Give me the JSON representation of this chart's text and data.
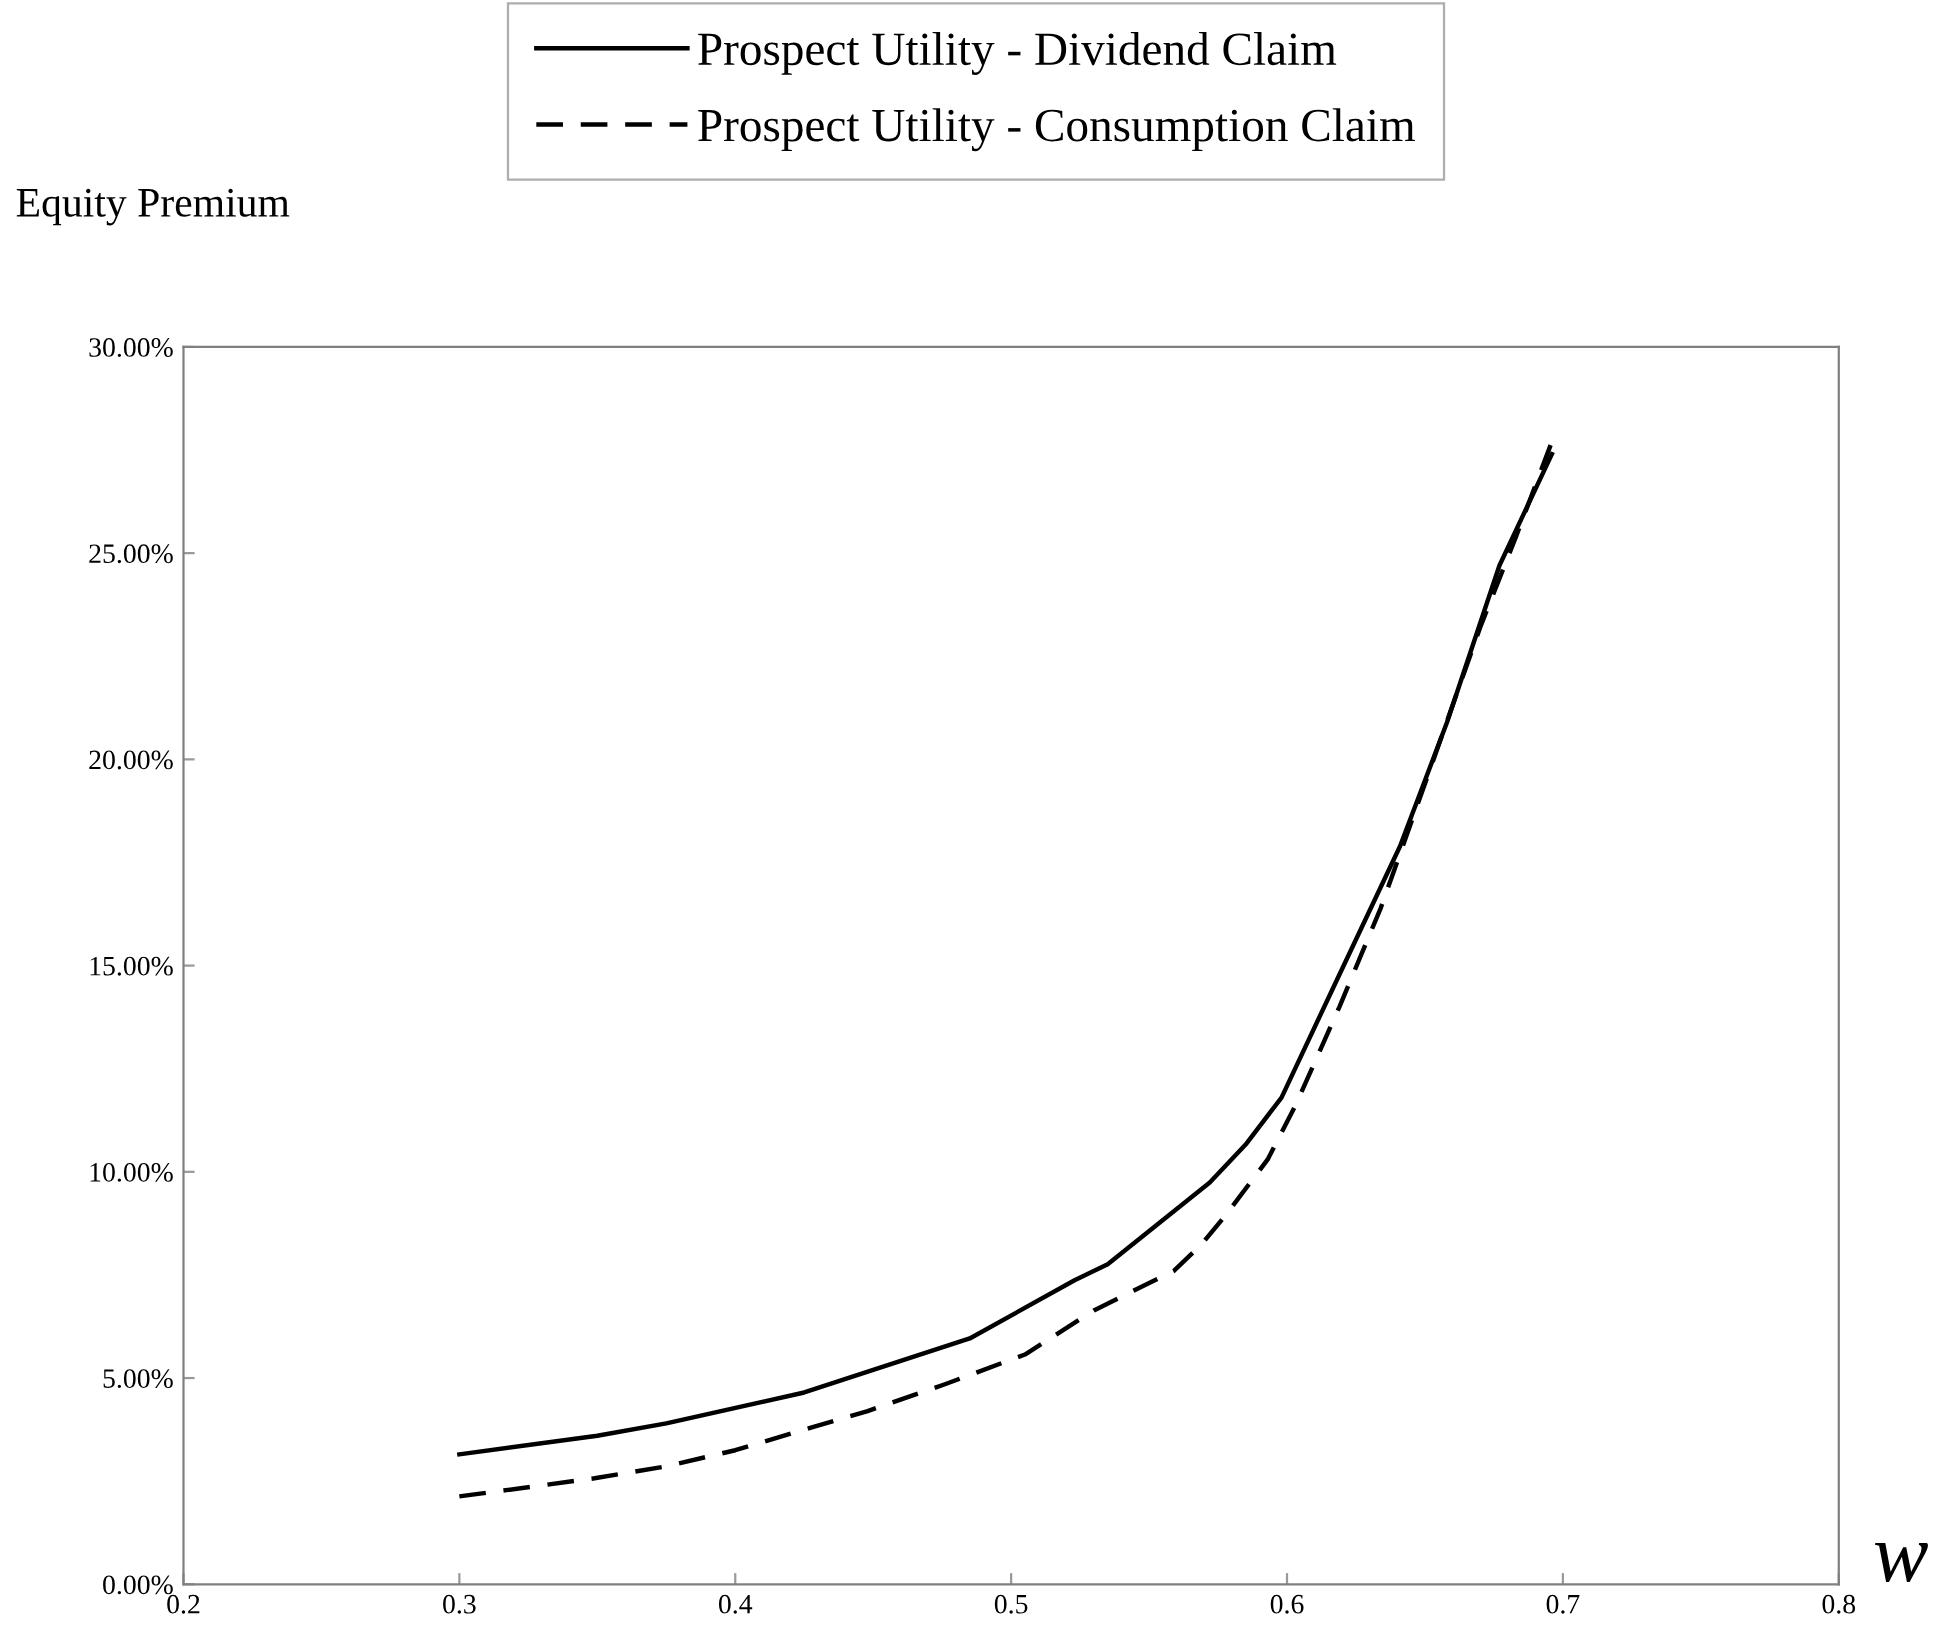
{
  "chart_data": {
    "type": "line",
    "xlabel": "w",
    "ylabel": "Equity Premium",
    "xlim": [
      0.2,
      0.8
    ],
    "xticks": [
      0.2,
      0.3,
      0.4,
      0.5,
      0.6,
      0.7,
      0.8
    ],
    "ylim": [
      0,
      30
    ],
    "yticks": [
      {
        "value": 0,
        "label": "0.00%"
      },
      {
        "value": 5,
        "label": "5.00%"
      },
      {
        "value": 10,
        "label": "10.00%"
      },
      {
        "value": 15,
        "label": "15.00%"
      },
      {
        "value": 20,
        "label": "20.00%"
      },
      {
        "value": 25,
        "label": "25.00%"
      },
      {
        "value": 30,
        "label": "30.00%"
      }
    ],
    "grid": false,
    "legend": "top",
    "marker": "none",
    "series": [
      {
        "name": "Prospect Utility - Dividend Claim",
        "color": "#000000",
        "line_style": "solid",
        "x": [
          0.3,
          0.35,
          0.375,
          0.425,
          0.485,
          0.523,
          0.535,
          0.572,
          0.585,
          0.598,
          0.617,
          0.641,
          0.658,
          0.677,
          0.696
        ],
        "values": [
          3.15,
          3.6,
          3.9,
          4.65,
          5.96,
          7.37,
          7.76,
          9.74,
          10.66,
          11.8,
          14.5,
          17.9,
          20.9,
          24.7,
          27.4
        ]
      },
      {
        "name": "Prospect Utility - Consumption Claim",
        "color": "#000000",
        "line_style": "dashed",
        "x": [
          0.3,
          0.349,
          0.375,
          0.4,
          0.429,
          0.448,
          0.476,
          0.505,
          0.53,
          0.559,
          0.569,
          0.578,
          0.593,
          0.603,
          0.619,
          0.634,
          0.651,
          0.67,
          0.683,
          0.696
        ],
        "values": [
          2.13,
          2.57,
          2.86,
          3.25,
          3.83,
          4.2,
          4.85,
          5.57,
          6.64,
          7.6,
          8.24,
          8.97,
          10.3,
          11.6,
          14.0,
          16.4,
          19.6,
          23.2,
          25.4,
          27.7
        ]
      }
    ]
  }
}
